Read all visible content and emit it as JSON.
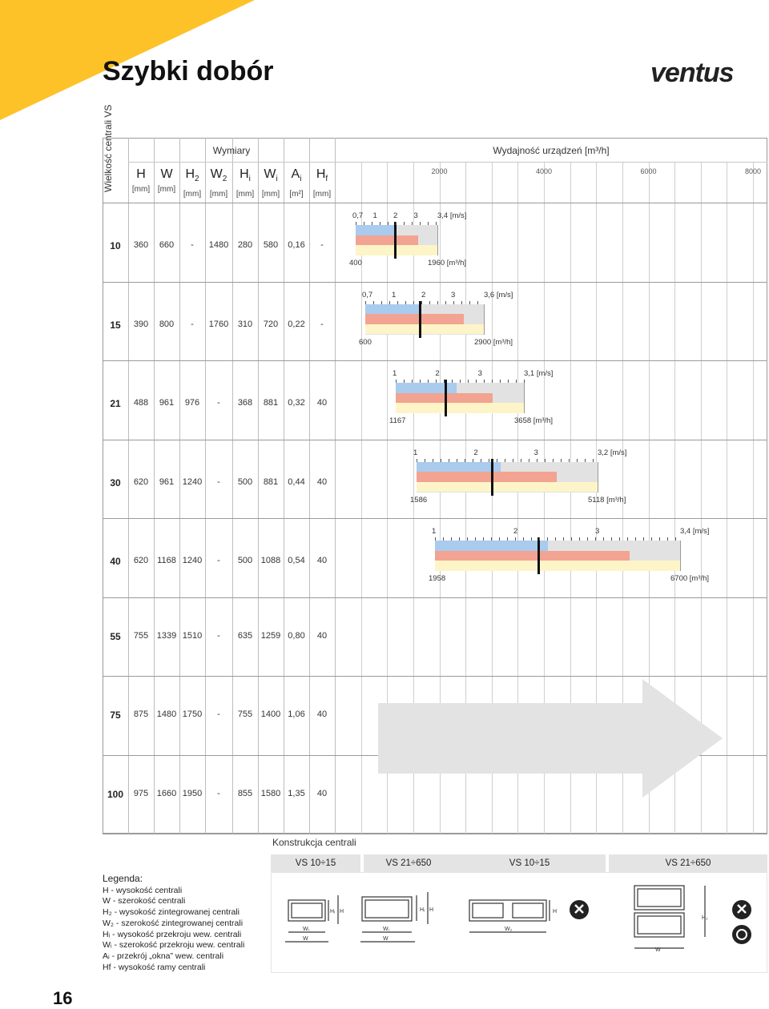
{
  "page": {
    "title": "Szybki dobór",
    "logo": "ventus",
    "page_number": "16"
  },
  "header": {
    "size_col": "Wielkość centrali VS",
    "dimensions_group": "Wymiary",
    "capacity_group": "Wydajność urządzeń [m³/h]",
    "columns": [
      {
        "sym": "H",
        "sub": "",
        "unit": "[mm]"
      },
      {
        "sym": "W",
        "sub": "",
        "unit": "[mm]"
      },
      {
        "sym": "H",
        "sub": "2",
        "unit": "[mm]"
      },
      {
        "sym": "W",
        "sub": "2",
        "unit": "[mm]"
      },
      {
        "sym": "H",
        "sub": "i",
        "unit": "[mm]"
      },
      {
        "sym": "W",
        "sub": "i",
        "unit": "[mm]"
      },
      {
        "sym": "A",
        "sub": "i",
        "unit": "[m²]"
      },
      {
        "sym": "H",
        "sub": "f",
        "unit": "[mm]"
      }
    ],
    "capacity_ticks": [
      "2000",
      "4000",
      "6000",
      "8000"
    ]
  },
  "rows": [
    {
      "size": "10",
      "values": [
        "360",
        "660",
        "-",
        "1480",
        "280",
        "580",
        "0,16",
        "-"
      ],
      "bar": {
        "vel_labels": [
          "0,7",
          "1",
          "2",
          "3",
          "3,4 [m/s]"
        ],
        "min_flow": "400",
        "max_flow": "1960 [m³/h]"
      }
    },
    {
      "size": "15",
      "values": [
        "390",
        "800",
        "-",
        "1760",
        "310",
        "720",
        "0,22",
        "-"
      ],
      "bar": {
        "vel_labels": [
          "0,7",
          "1",
          "2",
          "3",
          "3,6 [m/s]"
        ],
        "min_flow": "600",
        "max_flow": "2900 [m³/h]"
      }
    },
    {
      "size": "21",
      "values": [
        "488",
        "961",
        "976",
        "-",
        "368",
        "881",
        "0,32",
        "40"
      ],
      "bar": {
        "vel_labels": [
          "1",
          "2",
          "3",
          "3,1 [m/s]"
        ],
        "min_flow": "1167",
        "max_flow": "3658 [m³/h]"
      }
    },
    {
      "size": "30",
      "values": [
        "620",
        "961",
        "1240",
        "-",
        "500",
        "881",
        "0,44",
        "40"
      ],
      "bar": {
        "vel_labels": [
          "1",
          "2",
          "3",
          "3,2 [m/s]"
        ],
        "min_flow": "1586",
        "max_flow": "5118 [m³/h]"
      }
    },
    {
      "size": "40",
      "values": [
        "620",
        "1168",
        "1240",
        "-",
        "500",
        "1088",
        "0,54",
        "40"
      ],
      "bar": {
        "vel_labels": [
          "1",
          "2",
          "3",
          "3,4 [m/s]"
        ],
        "min_flow": "1958",
        "max_flow": "6700 [m³/h]"
      }
    },
    {
      "size": "55",
      "values": [
        "755",
        "1339",
        "1510",
        "-",
        "635",
        "1259",
        "0,80",
        "40"
      ]
    },
    {
      "size": "75",
      "values": [
        "875",
        "1480",
        "1750",
        "-",
        "755",
        "1400",
        "1,06",
        "40"
      ]
    },
    {
      "size": "100",
      "values": [
        "975",
        "1660",
        "1950",
        "-",
        "855",
        "1580",
        "1,35",
        "40"
      ]
    }
  ],
  "construction": {
    "title": "Konstrukcja centrali",
    "headers": [
      "VS 10÷15",
      "VS 21÷650",
      "VS 10÷15",
      "VS 21÷650"
    ]
  },
  "legend": {
    "title": "Legenda:",
    "items": [
      "H - wysokość centrali",
      "W - szerokość centrali",
      "H₂ - wysokość zintegrowanej centrali",
      "W₂ - szerokość zintegrowanej centrali",
      "Hᵢ - wysokość przekroju wew. centrali",
      "Wᵢ - szerokość przekroju wew. centrali",
      "Aᵢ - przekrój „okna” wew. centrali",
      "Hf - wysokość ramy centrali"
    ]
  },
  "colors": {
    "corner_yellow": "#fec229",
    "bar_blue": "#a9cbee",
    "bar_red": "#f2a391",
    "bar_yellow": "#fdf5c8",
    "bar_grey": "#e2e2e2",
    "arrow_grey": "#e3e3e3"
  }
}
